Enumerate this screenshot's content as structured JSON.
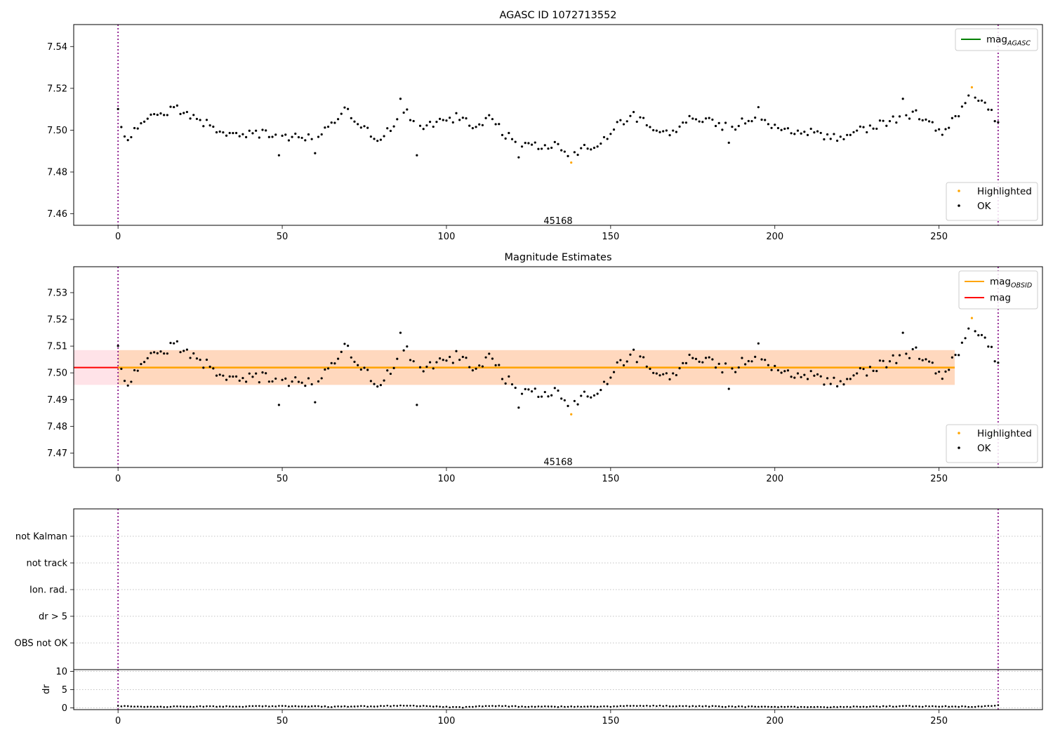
{
  "chart_data": [
    {
      "type": "scatter",
      "title": "AGASC ID 1072713552",
      "xlabel": "",
      "ylabel": "",
      "xlim": [
        -13.5,
        281.5
      ],
      "ylim": [
        7.4545,
        7.5505
      ],
      "xticks": [
        0,
        50,
        100,
        150,
        200,
        250,
        300
      ],
      "yticks": [
        7.46,
        7.48,
        7.5,
        7.52,
        7.54
      ],
      "grid": false,
      "annotation": {
        "text": "45168",
        "x": 134,
        "y": 7.4565
      },
      "vlines": [
        0,
        268
      ],
      "legend_lines": [
        {
          "main": "mag",
          "sub": "AGASC",
          "color": "#008000"
        }
      ],
      "legend_points": [
        {
          "label": "Highlighted",
          "color": "#ffa500"
        },
        {
          "label": "OK",
          "color": "#000000"
        }
      ],
      "legend_lines_position": "upper-right",
      "legend_points_position": "lower-right",
      "series": [
        {
          "name": "OK",
          "color": "#000000",
          "keypoints": [
            [
              0,
              7.508
            ],
            [
              2,
              7.496
            ],
            [
              5,
              7.5
            ],
            [
              9,
              7.507
            ],
            [
              12,
              7.506
            ],
            [
              17,
              7.511
            ],
            [
              21,
              7.508
            ],
            [
              27,
              7.503
            ],
            [
              35,
              7.497
            ],
            [
              42,
              7.499
            ],
            [
              48,
              7.497
            ],
            [
              52,
              7.496
            ],
            [
              60,
              7.497
            ],
            [
              64,
              7.501
            ],
            [
              69,
              7.51
            ],
            [
              73,
              7.505
            ],
            [
              78,
              7.496
            ],
            [
              83,
              7.5
            ],
            [
              88,
              7.508
            ],
            [
              92,
              7.502
            ],
            [
              98,
              7.504
            ],
            [
              103,
              7.506
            ],
            [
              108,
              7.502
            ],
            [
              113,
              7.506
            ],
            [
              117,
              7.499
            ],
            [
              122,
              7.494
            ],
            [
              128,
              7.492
            ],
            [
              133,
              7.493
            ],
            [
              139,
              7.488
            ],
            [
              143,
              7.492
            ],
            [
              148,
              7.495
            ],
            [
              152,
              7.502
            ],
            [
              157,
              7.507
            ],
            [
              161,
              7.503
            ],
            [
              166,
              7.498
            ],
            [
              171,
              7.502
            ],
            [
              176,
              7.507
            ],
            [
              181,
              7.503
            ],
            [
              186,
              7.501
            ],
            [
              191,
              7.504
            ],
            [
              197,
              7.504
            ],
            [
              202,
              7.499
            ],
            [
              207,
              7.5
            ],
            [
              212,
              7.499
            ],
            [
              218,
              7.496
            ],
            [
              223,
              7.499
            ],
            [
              228,
              7.501
            ],
            [
              233,
              7.503
            ],
            [
              238,
              7.506
            ],
            [
              243,
              7.508
            ],
            [
              247,
              7.503
            ],
            [
              251,
              7.499
            ],
            [
              255,
              7.506
            ],
            [
              259,
              7.516
            ],
            [
              263,
              7.513
            ],
            [
              267,
              7.506
            ],
            [
              268,
              7.504
            ]
          ],
          "outliers": [
            [
              49,
              7.488
            ],
            [
              60,
              7.489
            ],
            [
              86,
              7.515
            ],
            [
              91,
              7.488
            ],
            [
              122,
              7.487
            ],
            [
              186,
              7.494
            ],
            [
              195,
              7.511
            ],
            [
              239,
              7.515
            ]
          ]
        },
        {
          "name": "Highlighted",
          "color": "#ffa500",
          "points": [
            [
              138,
              7.4845
            ],
            [
              260,
              7.5205
            ]
          ]
        }
      ]
    },
    {
      "type": "scatter",
      "title": "Magnitude Estimates",
      "xlabel": "",
      "ylabel": "",
      "xlim": [
        -13.5,
        281.5
      ],
      "ylim": [
        7.4646,
        7.5397
      ],
      "xticks": [
        0,
        50,
        100,
        150,
        200,
        250,
        300
      ],
      "yticks": [
        7.47,
        7.48,
        7.49,
        7.5,
        7.51,
        7.52,
        7.53
      ],
      "grid": false,
      "annotation": {
        "text": "45168",
        "x": 134,
        "y": 7.4666
      },
      "vlines": [
        0,
        268
      ],
      "bands": [
        {
          "x": [
            -13.5,
            281.5
          ],
          "y": [
            7.4955,
            7.5085
          ],
          "color": "#ffc0cb",
          "opacity": 0.45
        },
        {
          "x": [
            0,
            268
          ],
          "y": [
            7.4955,
            7.5085
          ],
          "color": "#ffa500",
          "opacity": 0.18
        }
      ],
      "hlines": [
        {
          "name": "mag",
          "y": 7.502,
          "x": [
            -13.5,
            281.5
          ],
          "color": "#ff0000"
        },
        {
          "name": "mag OBSID",
          "y": 7.502,
          "x": [
            0,
            268
          ],
          "color": "#ffa500"
        }
      ],
      "legend_lines": [
        {
          "main": "mag",
          "sub": "OBSID",
          "color": "#ffa500"
        },
        {
          "main": "mag",
          "sub": "",
          "color": "#ff0000"
        }
      ],
      "legend_points": [
        {
          "label": "Highlighted",
          "color": "#ffa500"
        },
        {
          "label": "OK",
          "color": "#000000"
        }
      ],
      "legend_lines_position": "upper-right",
      "legend_points_position": "lower-right",
      "series": [
        {
          "name": "OK",
          "color": "#000000",
          "same_as_panel": 0
        },
        {
          "name": "Highlighted",
          "color": "#ffa500",
          "points": [
            [
              138,
              7.4845
            ],
            [
              260,
              7.5205
            ]
          ]
        }
      ]
    },
    {
      "type": "scatter",
      "title": "",
      "xlim": [
        -13.5,
        281.5
      ],
      "categories": [
        "OBS not OK",
        "dr > 5",
        "Ion. rad.",
        "not track",
        "not Kalman"
      ],
      "grid": true,
      "vlines": [
        0,
        268
      ],
      "series": []
    },
    {
      "type": "scatter",
      "title": "",
      "xlabel": "",
      "ylabel": "dr",
      "xlim": [
        -13.5,
        281.5
      ],
      "ylim": [
        -0.5,
        10.5
      ],
      "xticks": [
        0,
        50,
        100,
        150,
        200,
        250,
        300
      ],
      "yticks": [
        0,
        5,
        10
      ],
      "grid": true,
      "vlines": [
        0,
        268
      ],
      "series": [
        {
          "name": "dr",
          "color": "#000000",
          "keypoints": [
            [
              0,
              0.5
            ],
            [
              10,
              0.3
            ],
            [
              30,
              0.35
            ],
            [
              55,
              0.45
            ],
            [
              65,
              0.3
            ],
            [
              80,
              0.45
            ],
            [
              88,
              0.6
            ],
            [
              95,
              0.4
            ],
            [
              104,
              0.1
            ],
            [
              113,
              0.55
            ],
            [
              125,
              0.3
            ],
            [
              140,
              0.3
            ],
            [
              150,
              0.35
            ],
            [
              155,
              0.6
            ],
            [
              170,
              0.5
            ],
            [
              185,
              0.35
            ],
            [
              200,
              0.25
            ],
            [
              215,
              0.2
            ],
            [
              225,
              0.3
            ],
            [
              240,
              0.45
            ],
            [
              260,
              0.3
            ],
            [
              268,
              0.7
            ]
          ]
        }
      ]
    }
  ]
}
